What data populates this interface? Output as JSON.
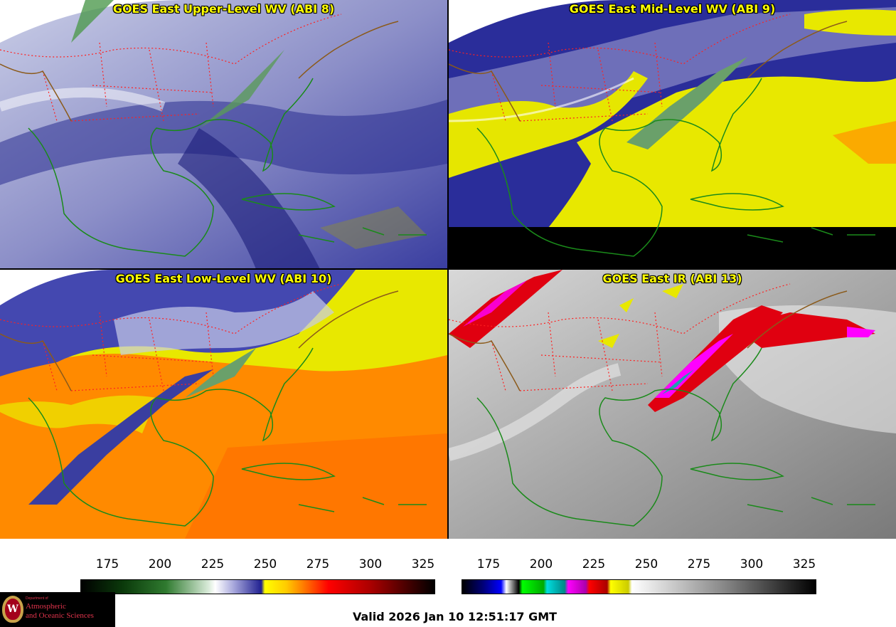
{
  "panels": {
    "upper_left": {
      "title": "GOES East Upper-Level WV (ABI 8)"
    },
    "upper_right": {
      "title": "GOES East Mid-Level WV (ABI 9)"
    },
    "lower_left": {
      "title": "GOES East Low-Level WV (ABI 10)"
    },
    "lower_right": {
      "title": "GOES East IR (ABI 13)"
    }
  },
  "colorbar_wv": {
    "ticks": [
      "175",
      "200",
      "225",
      "250",
      "275",
      "300",
      "325"
    ]
  },
  "colorbar_ir": {
    "ticks": [
      "175",
      "200",
      "225",
      "250",
      "275",
      "300",
      "325"
    ]
  },
  "logo": {
    "dept": "Department of",
    "line1": "Atmospheric",
    "line2": "and Oceanic Sciences",
    "seal_letter": "W"
  },
  "footer": {
    "valid_time": "Valid 2026 Jan 10 12:51:17 GMT"
  },
  "colors": {
    "title_yellow": "#ffff00",
    "state_lines": "#ff2020",
    "coastline": "#1a8a1a",
    "border_brown": "#8b5a1a"
  }
}
